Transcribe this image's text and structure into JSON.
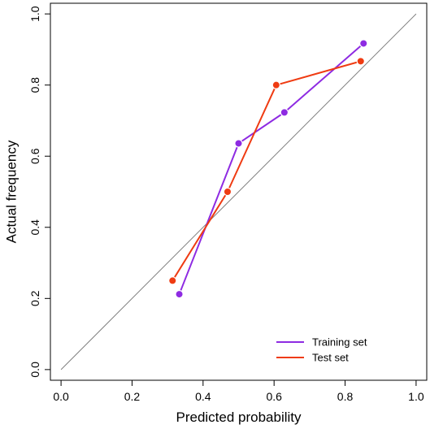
{
  "chart_data": {
    "type": "line",
    "title": "",
    "xlabel": "Predicted probability",
    "ylabel": "Actual frequency",
    "xlim": [
      -0.03,
      1.03
    ],
    "ylim": [
      -0.03,
      1.03
    ],
    "x_ticks": [
      0.0,
      0.2,
      0.4,
      0.6,
      0.8,
      1.0
    ],
    "y_ticks": [
      0.0,
      0.2,
      0.4,
      0.6,
      0.8,
      1.0
    ],
    "x_tick_labels": [
      "0.0",
      "0.2",
      "0.4",
      "0.6",
      "0.8",
      "1.0"
    ],
    "y_tick_labels": [
      "0.0",
      "0.2",
      "0.4",
      "0.6",
      "0.8",
      "1.0"
    ],
    "grid": false,
    "reference_line": {
      "from": [
        0,
        0
      ],
      "to": [
        1,
        1
      ],
      "color": "#7f7f7f"
    },
    "legend": {
      "position": "bottom-right"
    },
    "series": [
      {
        "name": "Training set",
        "color": "#8e2be2",
        "x": [
          0.333,
          0.5,
          0.629,
          0.852
        ],
        "y": [
          0.212,
          0.636,
          0.723,
          0.917
        ]
      },
      {
        "name": "Test set",
        "color": "#ef3b12",
        "x": [
          0.314,
          0.469,
          0.606,
          0.844
        ],
        "y": [
          0.25,
          0.5,
          0.8,
          0.867
        ]
      }
    ]
  }
}
